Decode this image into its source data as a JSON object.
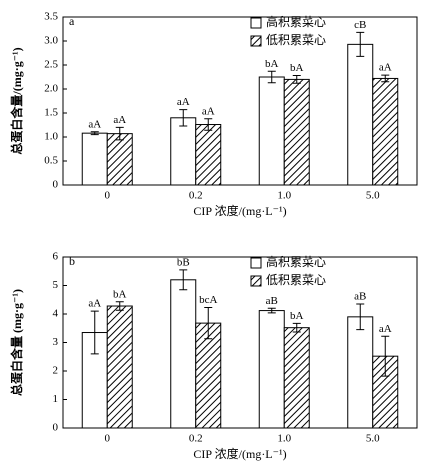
{
  "chart_data": [
    {
      "type": "bar",
      "panel": "a",
      "ylabel": "总蛋白含量/(mg·g⁻¹)",
      "xlabel": "CIP 浓度/(mg·L⁻¹)",
      "categories": [
        "0",
        "0.2",
        "1.0",
        "5.0"
      ],
      "ylim": [
        0,
        3.5
      ],
      "yticks": [
        0,
        0.5,
        {
          "value": 1,
          "label": "1.0"
        },
        1.5,
        {
          "value": 2,
          "label": "2.0"
        },
        2.5,
        {
          "value": 3,
          "label": "3.0"
        },
        3.5
      ],
      "legend": "upper right",
      "series": [
        {
          "name": "高积累菜心",
          "color": "#ffffff",
          "hatch": false,
          "values": [
            1.08,
            1.4,
            2.25,
            2.93
          ],
          "errors": [
            0.03,
            0.17,
            0.12,
            0.25
          ],
          "letters": [
            "aA",
            "aA",
            "bA",
            "cB"
          ]
        },
        {
          "name": "低积累菜心",
          "color": "#ffffff",
          "hatch": true,
          "values": [
            1.07,
            1.26,
            2.2,
            2.22
          ],
          "errors": [
            0.13,
            0.12,
            0.08,
            0.07
          ],
          "letters": [
            "aA",
            "aA",
            "bA",
            "aA"
          ]
        }
      ]
    },
    {
      "type": "bar",
      "panel": "b",
      "ylabel": "总蛋白含量 (mg·g⁻¹)",
      "xlabel": "CIP 浓度/(mg·L⁻¹)",
      "categories": [
        "0",
        "0.2",
        "1.0",
        "5.0"
      ],
      "ylim": [
        0,
        6
      ],
      "yticks": [
        0,
        1,
        2,
        3,
        4,
        5,
        6
      ],
      "legend": "upper right",
      "series": [
        {
          "name": "高积累菜心",
          "color": "#ffffff",
          "hatch": false,
          "values": [
            3.35,
            5.2,
            4.12,
            3.9
          ],
          "errors": [
            0.75,
            0.35,
            0.08,
            0.45
          ],
          "letters": [
            "aA",
            "bB",
            "aB",
            "aB"
          ]
        },
        {
          "name": "低积累菜心",
          "color": "#ffffff",
          "hatch": true,
          "values": [
            4.28,
            3.68,
            3.52,
            2.52
          ],
          "errors": [
            0.15,
            0.55,
            0.15,
            0.7
          ],
          "letters": [
            "bA",
            "bcA",
            "bA",
            "aA"
          ]
        }
      ]
    }
  ]
}
